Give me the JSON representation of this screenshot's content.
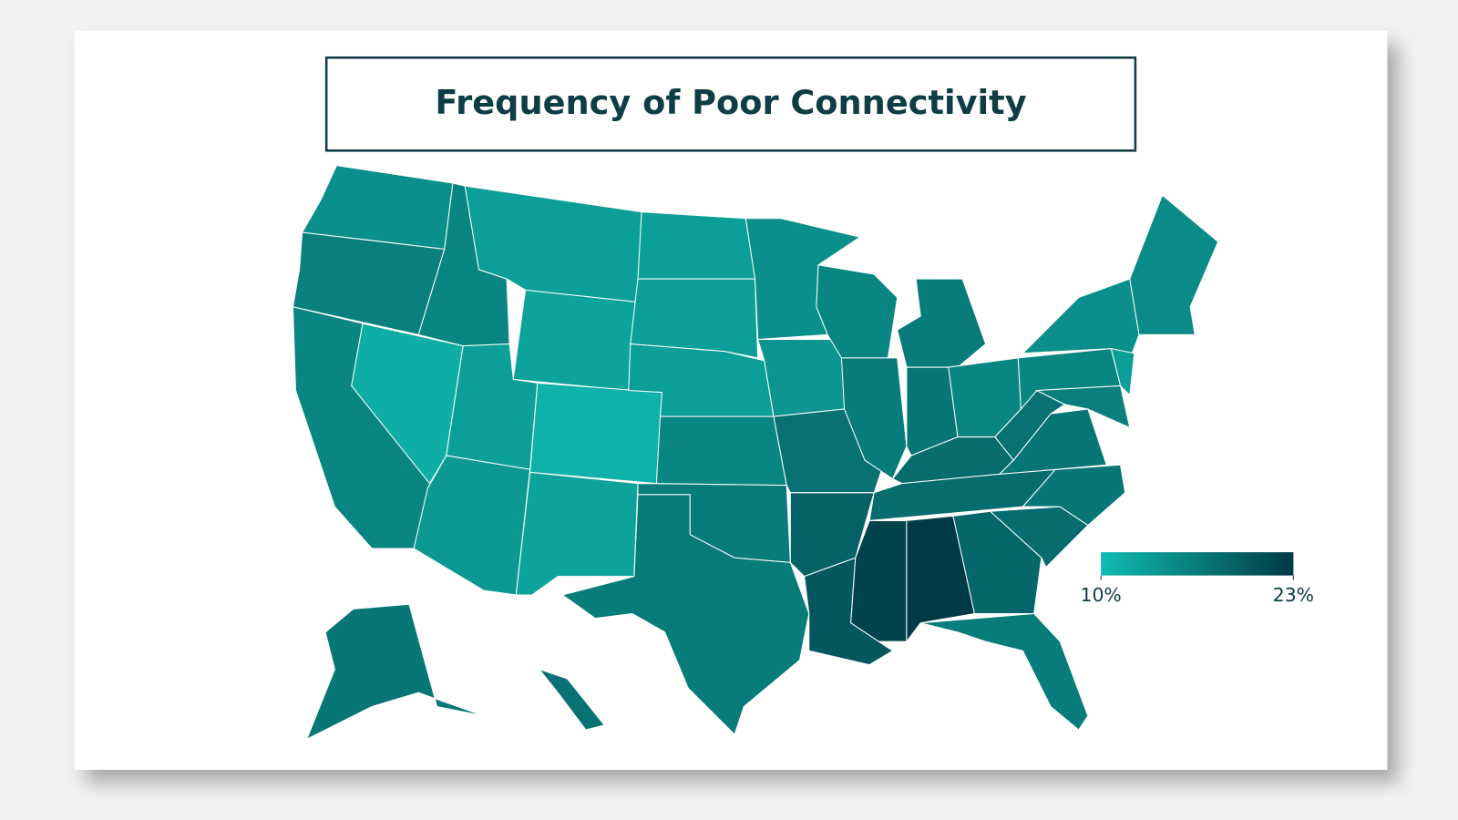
{
  "chart_data": {
    "type": "choropleth",
    "title": "Frequency of Poor Connectivity",
    "values": [
      14.5,
      16,
      15.5,
      11.5,
      15.5,
      13,
      12.5,
      13,
      13.5,
      11,
      12.5,
      13,
      13,
      13,
      15.5,
      16.5,
      16.5,
      14.5,
      14,
      17.5,
      19,
      20,
      15.5,
      16.5,
      16.5,
      17,
      15.5,
      18,
      18,
      22,
      23,
      18.5,
      16.5,
      18,
      17,
      17,
      17.5,
      15.5,
      14.5,
      16,
      13,
      15,
      17,
      17.5
    ],
    "colorbar": {
      "lim": [
        10,
        23
      ],
      "colors": [
        "#10bcb2",
        "#003a44"
      ],
      "ticks": [
        {
          "value": 10,
          "label": "10%"
        },
        {
          "value": 23,
          "label": "23%"
        }
      ]
    }
  }
}
